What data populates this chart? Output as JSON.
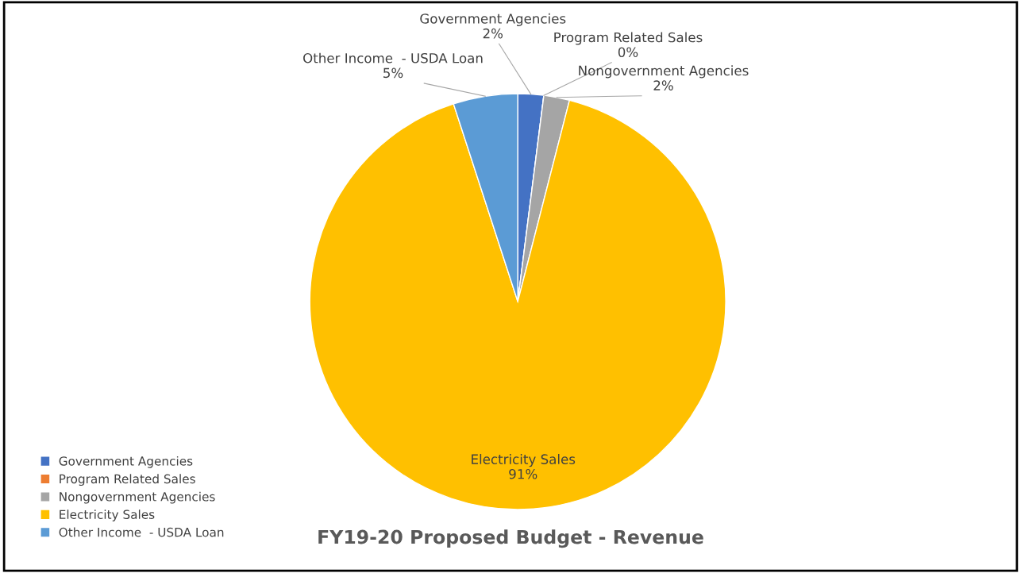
{
  "chart_data": {
    "type": "pie",
    "title": "FY19-20 Proposed Budget - Revenue",
    "categories": [
      "Government Agencies",
      "Program Related Sales",
      "Nongovernment Agencies",
      "Electricity Sales",
      "Other Income  - USDA Loan"
    ],
    "values": [
      2,
      0,
      2,
      91,
      5
    ],
    "colors": [
      "#4472c4",
      "#ed7d31",
      "#a5a5a5",
      "#ffc000",
      "#5b9bd5"
    ],
    "value_labels": [
      "2%",
      "0%",
      "2%",
      "91%",
      "5%"
    ],
    "legend": "bottom left"
  }
}
